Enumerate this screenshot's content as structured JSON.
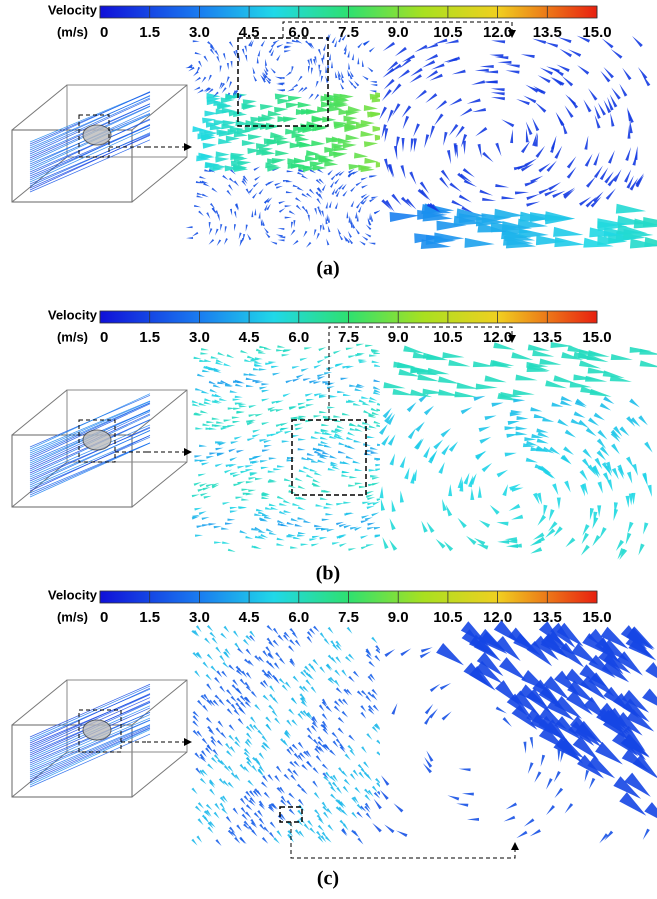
{
  "panels": [
    {
      "label": "(a)",
      "colorbar": {
        "title": "Velocity",
        "unit": "(m/s)",
        "ticks": [
          "0",
          "1.5",
          "3.0",
          "4.5",
          "6.0",
          "7.5",
          "9.0",
          "10.5",
          "12.0",
          "13.5",
          "15.0"
        ]
      }
    },
    {
      "label": "(b)",
      "colorbar": {
        "title": "Velocity",
        "unit": "(m/s)",
        "ticks": [
          "0",
          "1.5",
          "3.0",
          "4.5",
          "6.0",
          "7.5",
          "9.0",
          "10.5",
          "12.0",
          "13.5",
          "15.0"
        ]
      }
    },
    {
      "label": "(c)",
      "colorbar": {
        "title": "Velocity",
        "unit": "(m/s)",
        "ticks": [
          "0",
          "1.5",
          "3.0",
          "4.5",
          "6.0",
          "7.5",
          "9.0",
          "10.5",
          "12.0",
          "13.5",
          "15.0"
        ]
      }
    }
  ]
}
